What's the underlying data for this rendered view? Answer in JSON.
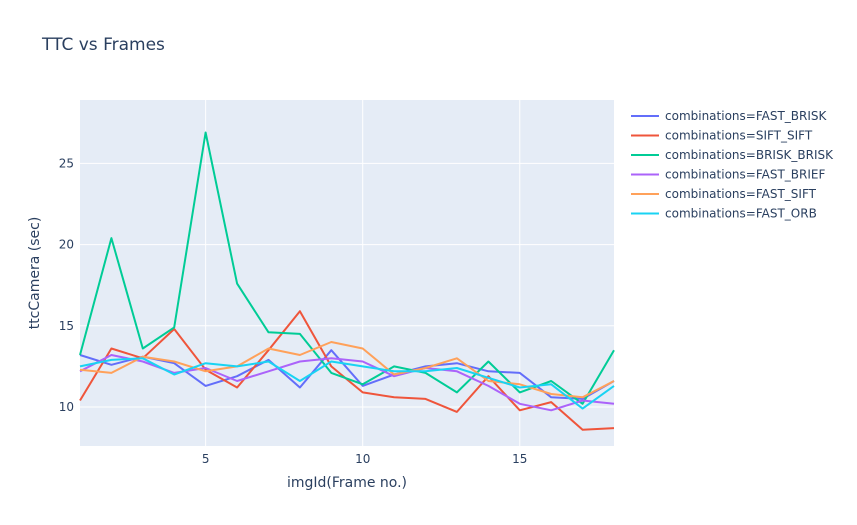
{
  "chart_data": {
    "type": "line",
    "title": "TTC vs Frames",
    "xlabel": "imgId(Frame no.)",
    "ylabel": "ttcCamera (sec)",
    "xlim": [
      1,
      18
    ],
    "ylim": [
      7.6,
      28.9
    ],
    "xticks": [
      5,
      10,
      15
    ],
    "yticks": [
      10,
      15,
      20,
      25
    ],
    "grid": true,
    "legend_position": "top-right",
    "plot_background": "#e5ecf6",
    "x": [
      1,
      2,
      3,
      4,
      5,
      6,
      7,
      8,
      9,
      10,
      11,
      12,
      13,
      14,
      15,
      16,
      17,
      18
    ],
    "series": [
      {
        "name": "combinations=FAST_BRISK",
        "color": "#636efa",
        "values": [
          13.2,
          12.6,
          13.1,
          12.7,
          11.3,
          11.9,
          12.9,
          11.2,
          13.5,
          11.3,
          12.0,
          12.5,
          12.7,
          12.2,
          12.1,
          10.6,
          10.5,
          11.6
        ]
      },
      {
        "name": "combinations=SIFT_SIFT",
        "color": "#ef553b",
        "values": [
          10.4,
          13.6,
          13.0,
          14.8,
          12.3,
          11.2,
          13.5,
          15.9,
          12.5,
          10.9,
          10.6,
          10.5,
          9.7,
          11.9,
          9.8,
          10.3,
          8.6,
          8.7
        ]
      },
      {
        "name": "combinations=BRISK_BRISK",
        "color": "#00cc96",
        "values": [
          13.2,
          20.4,
          13.6,
          14.9,
          26.9,
          17.6,
          14.6,
          14.5,
          12.1,
          11.4,
          12.5,
          12.1,
          10.9,
          12.8,
          10.9,
          11.6,
          10.2,
          13.5
        ]
      },
      {
        "name": "combinations=FAST_BRIEF",
        "color": "#ab63fa",
        "values": [
          12.2,
          13.2,
          12.8,
          12.1,
          12.4,
          11.6,
          12.2,
          12.8,
          13.0,
          12.8,
          11.9,
          12.4,
          12.2,
          11.3,
          10.2,
          9.8,
          10.4,
          10.2
        ]
      },
      {
        "name": "combinations=FAST_SIFT",
        "color": "#ffa15a",
        "values": [
          12.3,
          12.1,
          13.1,
          12.8,
          12.2,
          12.5,
          13.6,
          13.2,
          14.0,
          13.6,
          12.0,
          12.4,
          13.0,
          11.6,
          11.4,
          10.8,
          10.6,
          11.6
        ]
      },
      {
        "name": "combinations=FAST_ORB",
        "color": "#19d3f3",
        "values": [
          12.5,
          12.9,
          13.0,
          12.0,
          12.7,
          12.5,
          12.8,
          11.6,
          12.8,
          12.5,
          12.2,
          12.2,
          12.4,
          11.8,
          11.2,
          11.4,
          9.9,
          11.3
        ]
      }
    ]
  }
}
